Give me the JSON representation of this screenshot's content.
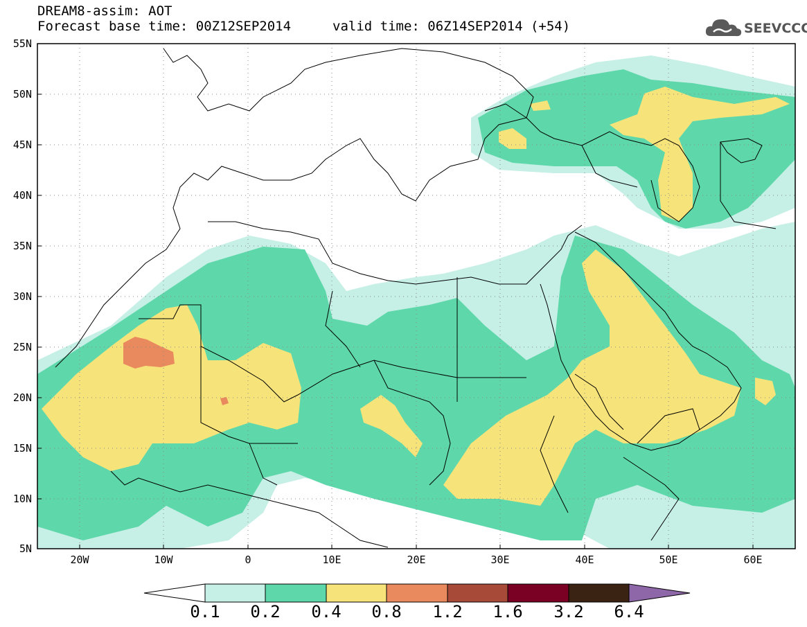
{
  "header": {
    "title": "DREAM8-assim: AOT",
    "base_time": "Forecast base time: 00Z12SEP2014",
    "valid_time": "valid time: 06Z14SEP2014 (+54)"
  },
  "logo": {
    "text": "SEEVCCC",
    "icon": "cloud-icon"
  },
  "map": {
    "lat_labels": [
      "55N",
      "50N",
      "45N",
      "40N",
      "35N",
      "30N",
      "25N",
      "20N",
      "15N",
      "10N",
      "5N"
    ],
    "lon_labels": [
      "20W",
      "10W",
      "0",
      "10E",
      "20E",
      "30E",
      "40E",
      "50E",
      "60E"
    ],
    "lat_range": [
      5,
      55
    ],
    "lon_range": [
      -25,
      65
    ],
    "grid": "dotted"
  },
  "colorbar": {
    "labels": [
      "0.1",
      "0.2",
      "0.4",
      "0.8",
      "1.2",
      "1.6",
      "3.2",
      "6.4"
    ],
    "colors": [
      "#ffffff",
      "#c6efe6",
      "#5ed8ab",
      "#f6e47a",
      "#e98a5e",
      "#a84a38",
      "#7a0024",
      "#3a2313",
      "#8e67a8"
    ]
  }
}
